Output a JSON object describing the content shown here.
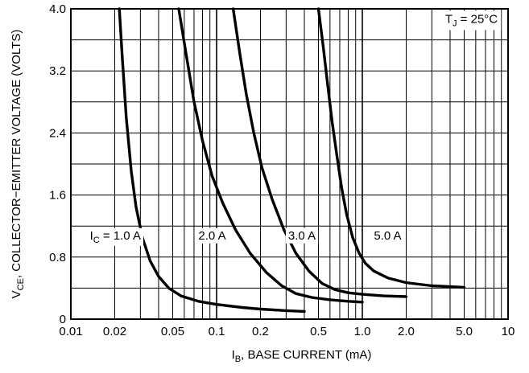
{
  "chart_data": {
    "type": "line",
    "x_scale": "log",
    "xlim": [
      0.01,
      10
    ],
    "ylim": [
      0,
      4.0
    ],
    "grid": true,
    "x_major_ticks": [
      0.01,
      0.1,
      1,
      10
    ],
    "x_tick_labels": [
      {
        "value": 0.01,
        "label": "0.01"
      },
      {
        "value": 0.02,
        "label": "0.02"
      },
      {
        "value": 0.05,
        "label": "0.05"
      },
      {
        "value": 0.1,
        "label": "0.1"
      },
      {
        "value": 0.2,
        "label": "0.2"
      },
      {
        "value": 0.5,
        "label": "0.5"
      },
      {
        "value": 1,
        "label": "1.0"
      },
      {
        "value": 2,
        "label": "2.0"
      },
      {
        "value": 5,
        "label": "5.0"
      },
      {
        "value": 10,
        "label": "10"
      }
    ],
    "y_tick_labels": [
      {
        "value": 0,
        "label": "0"
      },
      {
        "value": 0.8,
        "label": "0.8"
      },
      {
        "value": 1.6,
        "label": "1.6"
      },
      {
        "value": 2.4,
        "label": "2.4"
      },
      {
        "value": 3.2,
        "label": "3.2"
      },
      {
        "value": 4.0,
        "label": "4.0"
      }
    ],
    "y_grid_step": 0.4,
    "xlabel": {
      "main": "I",
      "sub": "B",
      "rest": ", BASE CURRENT (mA)"
    },
    "ylabel": {
      "main": "V",
      "sub": "CE",
      "rest": ", COLLECTOR−EMITTER VOLTAGE (VOLTS)"
    },
    "condition_label": {
      "main": "T",
      "sub": "J",
      "rest": " = 25°C"
    },
    "series": [
      {
        "curve_label": {
          "main": "I",
          "sub": "C",
          "rest": " = 1.0 A"
        },
        "label_anchor": {
          "x": 0.0135,
          "y": 1.08
        },
        "points": [
          [
            0.0215,
            4.0
          ],
          [
            0.0225,
            3.4
          ],
          [
            0.024,
            2.6
          ],
          [
            0.026,
            1.9
          ],
          [
            0.028,
            1.45
          ],
          [
            0.031,
            1.05
          ],
          [
            0.035,
            0.75
          ],
          [
            0.04,
            0.55
          ],
          [
            0.047,
            0.4
          ],
          [
            0.057,
            0.3
          ],
          [
            0.075,
            0.23
          ],
          [
            0.1,
            0.19
          ],
          [
            0.15,
            0.15
          ],
          [
            0.2,
            0.13
          ],
          [
            0.3,
            0.11
          ],
          [
            0.4,
            0.1
          ]
        ]
      },
      {
        "curve_label": {
          "main": "2.0 A",
          "sub": "",
          "rest": ""
        },
        "label_anchor": {
          "x": 0.075,
          "y": 1.08
        },
        "points": [
          [
            0.055,
            4.0
          ],
          [
            0.062,
            3.4
          ],
          [
            0.07,
            2.8
          ],
          [
            0.08,
            2.3
          ],
          [
            0.093,
            1.85
          ],
          [
            0.11,
            1.5
          ],
          [
            0.135,
            1.15
          ],
          [
            0.17,
            0.85
          ],
          [
            0.22,
            0.6
          ],
          [
            0.28,
            0.43
          ],
          [
            0.35,
            0.33
          ],
          [
            0.45,
            0.28
          ],
          [
            0.6,
            0.25
          ],
          [
            0.8,
            0.23
          ],
          [
            1.0,
            0.22
          ]
        ]
      },
      {
        "curve_label": {
          "main": "3.0 A",
          "sub": "",
          "rest": ""
        },
        "label_anchor": {
          "x": 0.31,
          "y": 1.08
        },
        "points": [
          [
            0.13,
            4.0
          ],
          [
            0.145,
            3.4
          ],
          [
            0.16,
            2.9
          ],
          [
            0.18,
            2.4
          ],
          [
            0.205,
            1.95
          ],
          [
            0.24,
            1.55
          ],
          [
            0.29,
            1.15
          ],
          [
            0.35,
            0.85
          ],
          [
            0.43,
            0.62
          ],
          [
            0.53,
            0.46
          ],
          [
            0.65,
            0.38
          ],
          [
            0.8,
            0.34
          ],
          [
            1.0,
            0.32
          ],
          [
            1.4,
            0.3
          ],
          [
            2.0,
            0.29
          ]
        ]
      },
      {
        "curve_label": {
          "main": "5.0 A",
          "sub": "",
          "rest": ""
        },
        "label_anchor": {
          "x": 1.2,
          "y": 1.08
        },
        "points": [
          [
            0.5,
            4.0
          ],
          [
            0.54,
            3.5
          ],
          [
            0.58,
            3.0
          ],
          [
            0.62,
            2.55
          ],
          [
            0.67,
            2.1
          ],
          [
            0.72,
            1.7
          ],
          [
            0.78,
            1.35
          ],
          [
            0.86,
            1.05
          ],
          [
            0.95,
            0.85
          ],
          [
            1.05,
            0.72
          ],
          [
            1.2,
            0.62
          ],
          [
            1.5,
            0.53
          ],
          [
            2.0,
            0.47
          ],
          [
            3.0,
            0.43
          ],
          [
            5.0,
            0.41
          ]
        ]
      }
    ]
  }
}
